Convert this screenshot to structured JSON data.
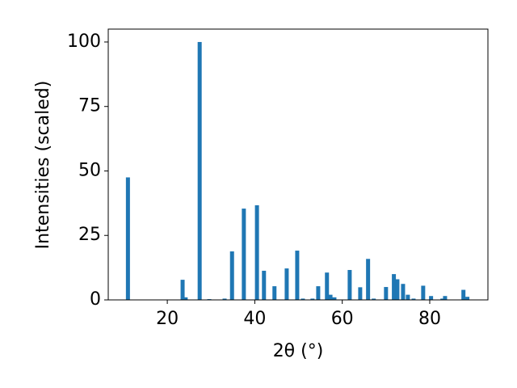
{
  "chart_data": {
    "type": "bar",
    "x_label": "2θ (°)",
    "y_label": "Intensities (scaled)",
    "x": [
      11.0,
      23.5,
      24.2,
      27.4,
      29.6,
      33.1,
      34.8,
      37.5,
      40.5,
      42.1,
      44.5,
      47.3,
      49.7,
      51.0,
      53.2,
      54.5,
      56.5,
      57.3,
      58.2,
      61.7,
      64.1,
      65.9,
      67.2,
      70.0,
      71.8,
      72.6,
      73.9,
      75.0,
      76.3,
      78.5,
      80.3,
      82.9,
      83.5,
      87.7,
      88.6
    ],
    "values": [
      47.5,
      7.8,
      1,
      100,
      0.3,
      0.5,
      18.8,
      35.4,
      36.7,
      11.3,
      5.3,
      12.2,
      19.1,
      0.5,
      0.5,
      5.3,
      10.6,
      2,
      1,
      11.6,
      4.9,
      15.9,
      0.5,
      5,
      10,
      8,
      6.2,
      2,
      0.5,
      5.5,
      1.5,
      0.5,
      1.5,
      3.9,
      1.2
    ],
    "color": "#1f77b4",
    "xlim": [
      6.5,
      93.3
    ],
    "xticks": [
      20,
      40,
      60,
      80
    ],
    "ylim": [
      0,
      105
    ],
    "yticks": [
      0,
      25,
      50,
      75,
      100
    ]
  }
}
